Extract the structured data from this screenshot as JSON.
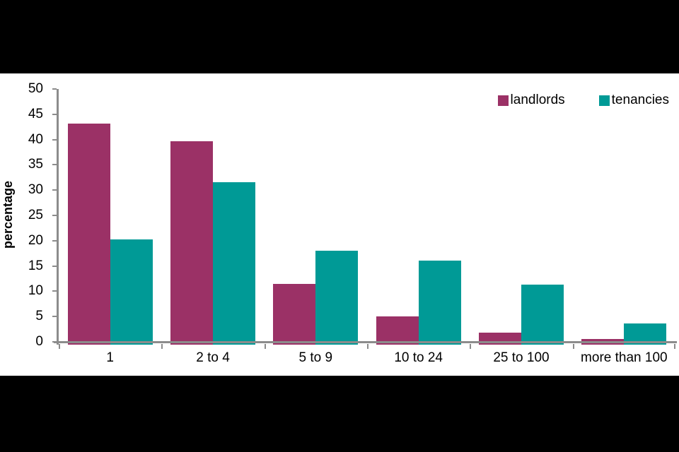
{
  "panel": {
    "background": "#ffffff",
    "letterbox_color": "#000000"
  },
  "chart_data": {
    "type": "bar",
    "title": "",
    "xlabel": "",
    "ylabel": "percentage",
    "categories": [
      "1",
      "2 to 4",
      "5 to 9",
      "10 to 24",
      "25 to 100",
      "more than 100"
    ],
    "series": [
      {
        "name": "landlords",
        "color": "#9b3166",
        "values": [
          43.2,
          39.6,
          11.5,
          5.0,
          1.8,
          0.5
        ]
      },
      {
        "name": "tenancies",
        "color": "#009a96",
        "values": [
          20.3,
          31.6,
          18.0,
          16.0,
          11.3,
          3.7
        ]
      }
    ],
    "ylim": [
      0,
      50
    ],
    "ytick_step": 5,
    "yticks": [
      0,
      5,
      10,
      15,
      20,
      25,
      30,
      35,
      40,
      45,
      50
    ],
    "grid": false,
    "legend_position": "top-right",
    "axis_color": "#8c8c8c",
    "text_color": "#000000"
  }
}
